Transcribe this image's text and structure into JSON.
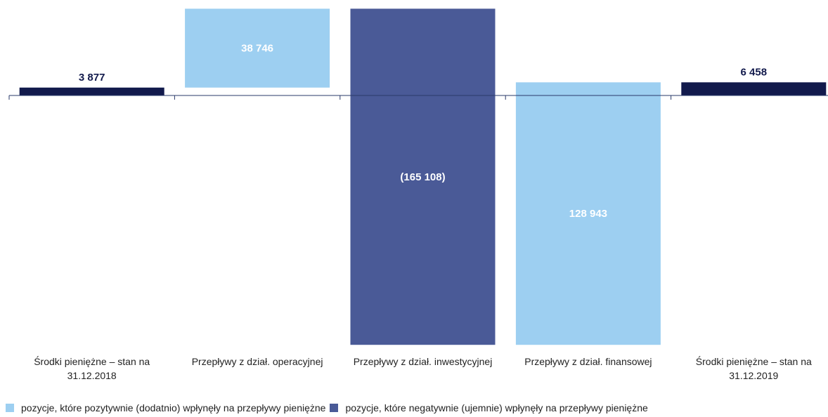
{
  "chart_data": {
    "type": "waterfall",
    "categories": [
      "Środki pieniężne – stan na 31.12.2018",
      "Przepływy z dział. operacyjnej",
      "Przepływy z dział. inwestycyjnej",
      "Przepływy z dział. finansowej",
      "Środki pieniężne – stan na 31.12.2019"
    ],
    "values": [
      3877,
      38746,
      -165108,
      128943,
      6458
    ],
    "value_labels": [
      "3 877",
      "38 746",
      "(165 108)",
      "128 943",
      "6 458"
    ],
    "is_total": [
      true,
      false,
      false,
      false,
      true
    ],
    "colors": [
      "#121a4c",
      "#9dcff1",
      "#4a5a97",
      "#9dcff1",
      "#121a4c"
    ],
    "ylim": [
      -125000,
      45000
    ],
    "legend": [
      {
        "name": "pozycje, które pozytywnie (dodatnio) wpłynęły na przepływy pieniężne",
        "color": "#9dcff1"
      },
      {
        "name": "pozycje, które negatywnie (ujemnie) wpłynęły na przepływy pieniężne",
        "color": "#4a5a97"
      }
    ]
  }
}
